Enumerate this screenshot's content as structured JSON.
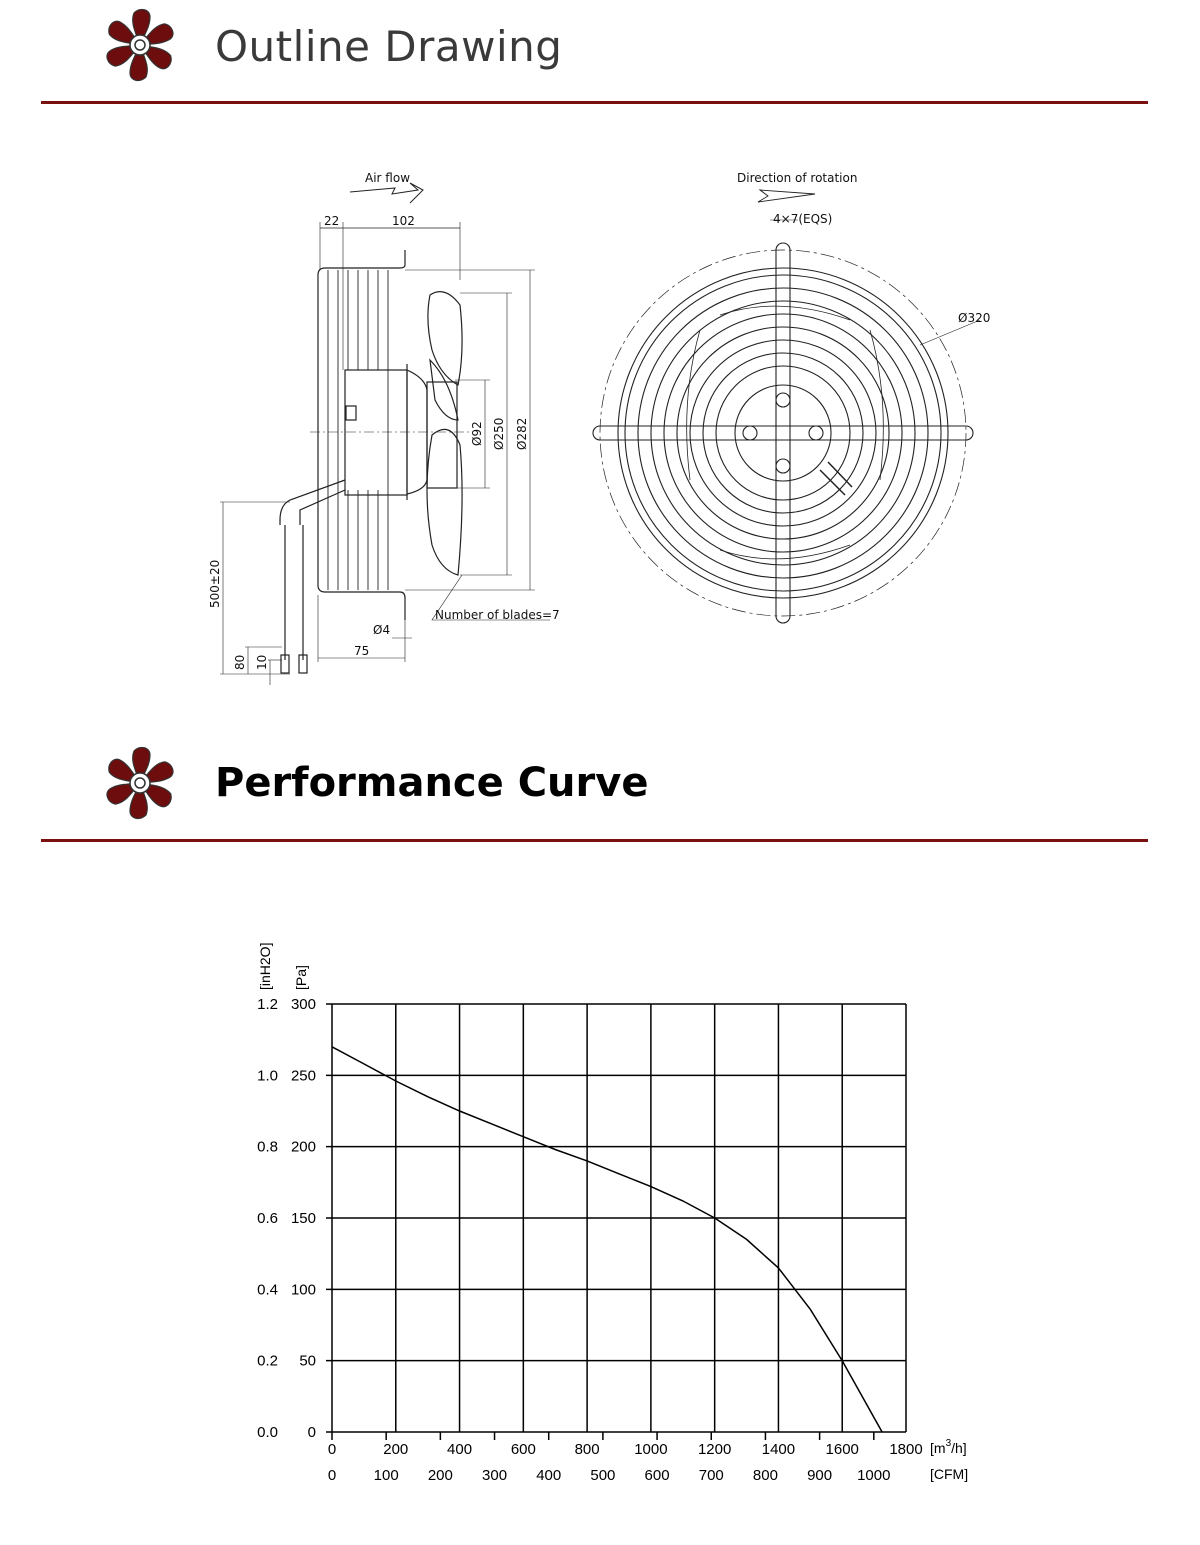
{
  "sections": {
    "outline": {
      "title": "Outline Drawing",
      "icon": "fan-icon"
    },
    "performance": {
      "title": "Performance Curve",
      "icon": "fan-icon"
    }
  },
  "colors": {
    "accent": "#7a1010",
    "logo": "#6e0d0d"
  },
  "drawing": {
    "side_view": {
      "airflow_label": "Air flow",
      "dim_22": "22",
      "dim_102": "102",
      "dim_d92": "Ø92",
      "dim_d250": "Ø250",
      "dim_d282": "Ø282",
      "dim_500": "500±20",
      "dim_80": "80",
      "dim_10": "10",
      "dim_d4": "Ø4",
      "dim_75": "75",
      "blades_label": "Number of blades=7"
    },
    "front_view": {
      "rotation_label": "Direction of rotation",
      "holes_label": "4×7(EQS)",
      "dim_d320": "Ø320"
    }
  },
  "chart_data": {
    "type": "line",
    "title": "",
    "xlabel": "[m³/h]",
    "xlabel_base": "[m",
    "xlabel_sup": "3",
    "xlabel_tail": "/h]",
    "x2label": "[CFM]",
    "ylabel": "[Pa]",
    "y2label": "[inH2O]",
    "xlim": [
      0,
      1800
    ],
    "ylim": [
      0,
      300
    ],
    "grid": true,
    "x_ticks": [
      "0",
      "200",
      "400",
      "600",
      "800",
      "1000",
      "1200",
      "1400",
      "1600",
      "1800"
    ],
    "x2_ticks": [
      "0",
      "100",
      "200",
      "300",
      "400",
      "500",
      "600",
      "700",
      "800",
      "900",
      "1000"
    ],
    "y_ticks": [
      "0",
      "50",
      "100",
      "150",
      "200",
      "250",
      "300"
    ],
    "y2_ticks": [
      "0.0",
      "0.2",
      "0.4",
      "0.6",
      "0.8",
      "1.0",
      "1.2"
    ],
    "series": [
      {
        "x": [
          0,
          100,
          200,
          300,
          400,
          500,
          600,
          700,
          800,
          900,
          1000,
          1100,
          1200,
          1300,
          1400,
          1500,
          1600,
          1700,
          1725
        ],
        "y": [
          270,
          258,
          246,
          235,
          225,
          216,
          207,
          198,
          190,
          181,
          172,
          162,
          150,
          135,
          115,
          86,
          50,
          10,
          0
        ]
      }
    ]
  }
}
